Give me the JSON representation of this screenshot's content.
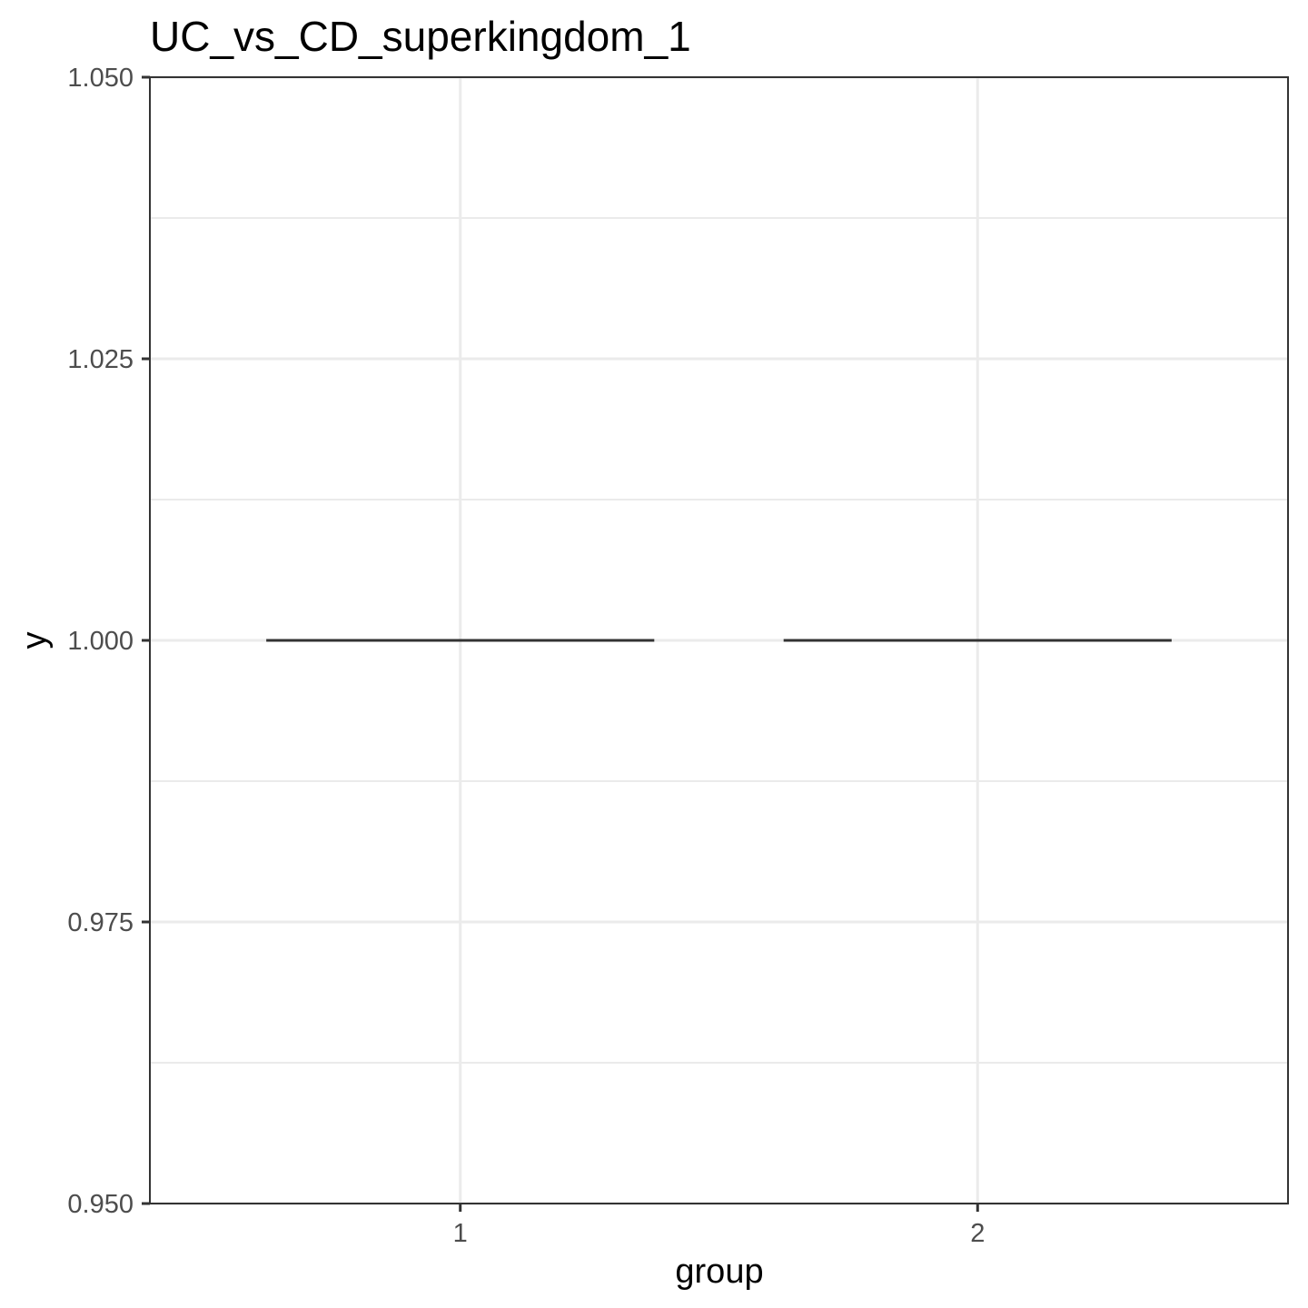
{
  "chart_data": {
    "type": "boxplot",
    "title": "UC_vs_CD_superkingdom_1",
    "xlabel": "group",
    "ylabel": "y",
    "categories": [
      "1",
      "2"
    ],
    "series": [
      {
        "values": [
          {
            "group": "1",
            "min": 1.0,
            "q1": 1.0,
            "median": 1.0,
            "q3": 1.0,
            "max": 1.0
          },
          {
            "group": "2",
            "min": 1.0,
            "q1": 1.0,
            "median": 1.0,
            "q3": 1.0,
            "max": 1.0
          }
        ]
      }
    ],
    "ylim": [
      0.95,
      1.05
    ],
    "yticks": [
      0.95,
      0.975,
      1.0,
      1.025,
      1.05
    ],
    "ytick_labels": [
      "0.950",
      "0.975",
      "1.000",
      "1.025",
      "1.050"
    ],
    "y_minor_ticks": [
      0.9625,
      0.9875,
      1.0125,
      1.0375
    ],
    "grid": true,
    "theme": "bw",
    "colors": {
      "box_line": "#333333",
      "grid": "#ebebeb",
      "panel_border": "#333333",
      "tick_label": "#4d4d4d"
    }
  }
}
